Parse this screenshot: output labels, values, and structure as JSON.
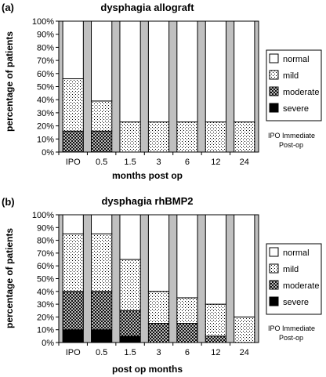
{
  "chart_data": [
    {
      "type": "bar",
      "stacked": true,
      "panel_label": "(a)",
      "title": "dysphagia allograft",
      "xlabel": "months post op",
      "ylabel": "percentage of patients",
      "ylim": [
        0,
        100
      ],
      "y_ticks": [
        "0%",
        "10%",
        "20%",
        "30%",
        "40%",
        "50%",
        "60%",
        "70%",
        "80%",
        "90%",
        "100%"
      ],
      "grid": false,
      "categories": [
        "IPO",
        "0.5",
        "1.5",
        "3",
        "6",
        "12",
        "24"
      ],
      "series": [
        {
          "name": "severe",
          "values": [
            0,
            0,
            0,
            0,
            0,
            0,
            0
          ]
        },
        {
          "name": "moderate",
          "values": [
            16,
            16,
            0,
            0,
            0,
            0,
            0
          ]
        },
        {
          "name": "mild",
          "values": [
            40,
            23,
            23,
            23,
            23,
            23,
            23
          ]
        },
        {
          "name": "normal",
          "values": [
            44,
            61,
            77,
            77,
            77,
            77,
            77
          ]
        }
      ],
      "legend_order": [
        "normal",
        "mild",
        "moderate",
        "severe"
      ],
      "legend_position": "right",
      "note": [
        "IPO Immediate",
        "Post-op"
      ]
    },
    {
      "type": "bar",
      "stacked": true,
      "panel_label": "(b)",
      "title": "dysphagia rhBMP2",
      "xlabel": "post op months",
      "ylabel": "percentage of patients",
      "ylim": [
        0,
        100
      ],
      "y_ticks": [
        "0%",
        "10%",
        "20%",
        "30%",
        "40%",
        "50%",
        "60%",
        "70%",
        "80%",
        "90%",
        "100%"
      ],
      "grid": false,
      "categories": [
        "IPO",
        "0.5",
        "1.5",
        "3",
        "6",
        "12",
        "24"
      ],
      "series": [
        {
          "name": "severe",
          "values": [
            10,
            10,
            5,
            0,
            0,
            0,
            0
          ]
        },
        {
          "name": "moderate",
          "values": [
            30,
            30,
            20,
            15,
            15,
            5,
            0
          ]
        },
        {
          "name": "mild",
          "values": [
            45,
            45,
            40,
            25,
            20,
            25,
            20
          ]
        },
        {
          "name": "normal",
          "values": [
            15,
            15,
            35,
            60,
            65,
            70,
            80
          ]
        }
      ],
      "legend_order": [
        "normal",
        "mild",
        "moderate",
        "severe"
      ],
      "legend_position": "right",
      "note": [
        "IPO Immediate",
        "Post-op"
      ]
    }
  ],
  "colors": {
    "plot_background": "#c0c0c0",
    "normal": "#ffffff",
    "severe": "#000000",
    "outline": "#000000"
  }
}
